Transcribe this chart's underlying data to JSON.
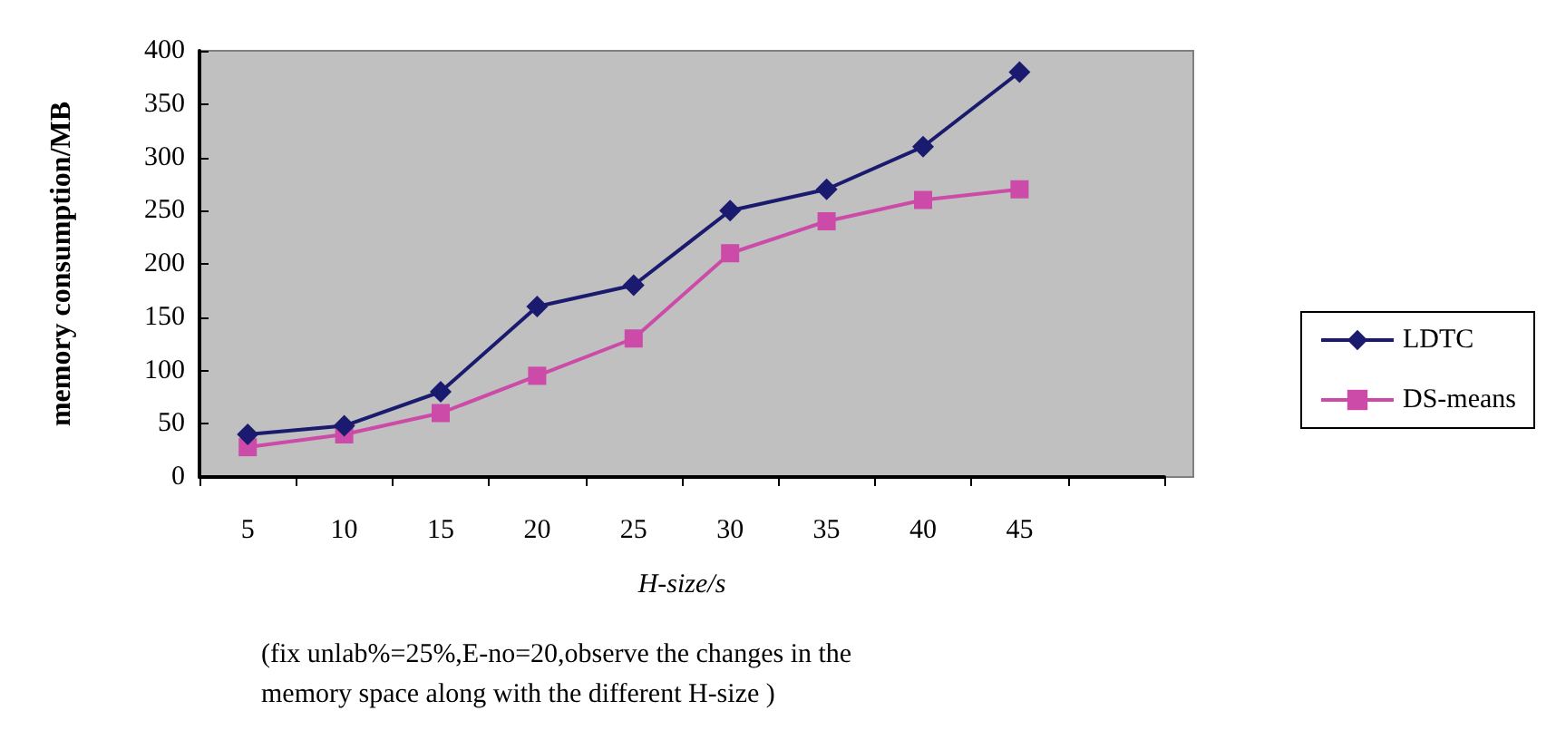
{
  "chart_data": {
    "type": "line",
    "xlabel": "H-size/s",
    "ylabel": "memory consumption/MB",
    "categories": [
      "5",
      "10",
      "15",
      "20",
      "25",
      "30",
      "35",
      "40",
      "45",
      null
    ],
    "series": [
      {
        "name": "LDTC",
        "color": "#1a1a6e",
        "marker": "diamond",
        "values": [
          40,
          48,
          80,
          160,
          180,
          250,
          270,
          310,
          380,
          null
        ]
      },
      {
        "name": "DS-means",
        "color": "#cc4aa8",
        "marker": "square",
        "values": [
          28,
          40,
          60,
          95,
          130,
          210,
          240,
          260,
          270,
          null
        ]
      }
    ],
    "ylim": [
      0,
      400
    ],
    "yticks": [
      0,
      50,
      100,
      150,
      200,
      250,
      300,
      350,
      400
    ],
    "grid": false,
    "legend": "right",
    "line_style": "solid",
    "annotations": [
      "(fix unlab%=25%,E-no=20,observe the changes in the\nmemory space along with the different H-size )"
    ]
  }
}
